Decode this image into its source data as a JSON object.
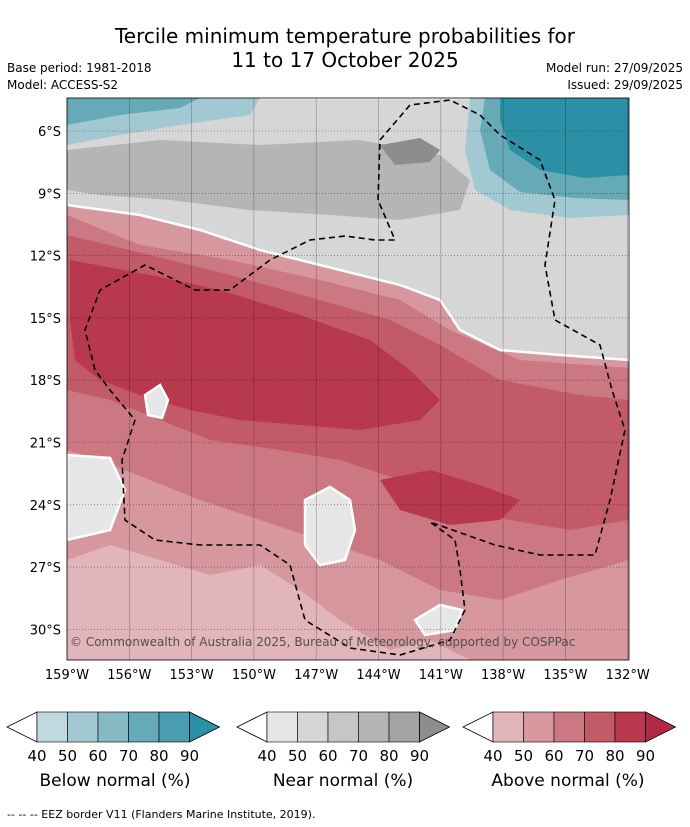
{
  "title_line1": "Tercile minimum temperature probabilities for",
  "title_line2": "11 to 17 October 2025",
  "base_period": "Base period: 1981-2018",
  "model": "Model: ACCESS-S2",
  "model_run": "Model run: 27/09/2025",
  "issued": "Issued: 29/09/2025",
  "map": {
    "lat_labels": [
      "6°S",
      "9°S",
      "12°S",
      "15°S",
      "18°S",
      "21°S",
      "24°S",
      "27°S",
      "30°S"
    ],
    "lon_labels": [
      "159°W",
      "156°W",
      "153°W",
      "150°W",
      "147°W",
      "144°W",
      "141°W",
      "138°W",
      "135°W",
      "132°W"
    ],
    "copyright": "© Commonwealth of Australia 2025, Bureau of Meteorology, supported by COSPPac",
    "colors": {
      "below": [
        "#c1d9de",
        "#a2c9d1",
        "#85b9c4",
        "#66a9b7",
        "#4a9caf",
        "#2b8fa6"
      ],
      "near": [
        "#e6e6e6",
        "#d6d6d6",
        "#c6c6c6",
        "#b5b5b5",
        "#a3a3a3",
        "#8d8d8d"
      ],
      "above": [
        "#e2b5bb",
        "#d7979f",
        "#cc7883",
        "#c35a68",
        "#b8384e",
        "#b02a47"
      ]
    }
  },
  "colorbars": [
    {
      "name": "below",
      "label": "Below normal (%)",
      "ticks": [
        "40",
        "50",
        "60",
        "70",
        "80",
        "90"
      ]
    },
    {
      "name": "near",
      "label": "Near normal (%)",
      "ticks": [
        "40",
        "50",
        "60",
        "70",
        "80",
        "90"
      ]
    },
    {
      "name": "above",
      "label": "Above normal (%)",
      "ticks": [
        "40",
        "50",
        "60",
        "70",
        "80",
        "90"
      ]
    }
  ],
  "footer": "--  --  -- EEZ border V11 (Flanders Marine Institute, 2019)."
}
